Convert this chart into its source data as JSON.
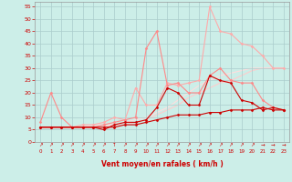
{
  "background_color": "#cceee8",
  "grid_color": "#aacccc",
  "xlabel": "Vent moyen/en rafales ( km/h )",
  "xlabel_color": "#cc0000",
  "tick_color": "#cc0000",
  "ylabel_ticks": [
    0,
    5,
    10,
    15,
    20,
    25,
    30,
    35,
    40,
    45,
    50,
    55
  ],
  "xlabel_ticks": [
    0,
    1,
    2,
    3,
    4,
    5,
    6,
    7,
    8,
    9,
    10,
    11,
    12,
    13,
    14,
    15,
    16,
    17,
    18,
    19,
    20,
    21,
    22,
    23
  ],
  "xlim": [
    -0.5,
    23.5
  ],
  "ylim": [
    0,
    57
  ],
  "lines": [
    {
      "x": [
        0,
        1,
        2,
        3,
        4,
        5,
        6,
        7,
        8,
        9,
        10,
        11,
        12,
        13,
        14,
        15,
        16,
        17,
        18,
        19,
        20,
        21,
        22,
        23
      ],
      "y": [
        6,
        6,
        6,
        6,
        6,
        6,
        6,
        6,
        7,
        7,
        8,
        9,
        10,
        11,
        11,
        11,
        12,
        12,
        13,
        13,
        13,
        14,
        13,
        13
      ],
      "color": "#cc0000",
      "lw": 0.8,
      "marker": "D",
      "ms": 1.5,
      "zorder": 5
    },
    {
      "x": [
        0,
        1,
        2,
        3,
        4,
        5,
        6,
        7,
        8,
        9,
        10,
        11,
        12,
        13,
        14,
        15,
        16,
        17,
        18,
        19,
        20,
        21,
        22,
        23
      ],
      "y": [
        6,
        6,
        6,
        6,
        6,
        6,
        5,
        7,
        8,
        8,
        9,
        14,
        22,
        20,
        15,
        15,
        27,
        25,
        24,
        17,
        16,
        13,
        14,
        13
      ],
      "color": "#cc0000",
      "lw": 0.8,
      "marker": "D",
      "ms": 1.5,
      "zorder": 4
    },
    {
      "x": [
        0,
        1,
        2,
        3,
        4,
        5,
        6,
        7,
        8,
        9,
        10,
        11,
        12,
        13,
        14,
        15,
        16,
        17,
        18,
        19,
        20,
        21,
        22,
        23
      ],
      "y": [
        8,
        20,
        10,
        6,
        6,
        6,
        7,
        8,
        9,
        10,
        38,
        45,
        23,
        24,
        20,
        20,
        27,
        30,
        25,
        24,
        24,
        17,
        14,
        13
      ],
      "color": "#ff8888",
      "lw": 0.8,
      "marker": "D",
      "ms": 1.5,
      "zorder": 3
    },
    {
      "x": [
        0,
        1,
        2,
        3,
        4,
        5,
        6,
        7,
        8,
        9,
        10,
        11,
        12,
        13,
        14,
        15,
        16,
        17,
        18,
        19,
        20,
        21,
        22,
        23
      ],
      "y": [
        6,
        6,
        6,
        6,
        7,
        7,
        8,
        10,
        9,
        22,
        15,
        15,
        24,
        23,
        24,
        25,
        55,
        45,
        44,
        40,
        39,
        35,
        30,
        30
      ],
      "color": "#ffaaaa",
      "lw": 0.8,
      "marker": "D",
      "ms": 1.5,
      "zorder": 2
    },
    {
      "x": [
        0,
        1,
        2,
        3,
        4,
        5,
        6,
        7,
        8,
        9,
        10,
        11,
        12,
        13,
        14,
        15,
        16,
        17,
        18,
        19,
        20,
        21,
        22,
        23
      ],
      "y": [
        6,
        6,
        6,
        6,
        6,
        6,
        6,
        7,
        7,
        8,
        9,
        11,
        13,
        15,
        18,
        20,
        22,
        24,
        25,
        27,
        29,
        30,
        30,
        30
      ],
      "color": "#ffcccc",
      "lw": 0.8,
      "marker": null,
      "ms": 0,
      "zorder": 1
    },
    {
      "x": [
        0,
        1,
        2,
        3,
        4,
        5,
        6,
        7,
        8,
        9,
        10,
        11,
        12,
        13,
        14,
        15,
        16,
        17,
        18,
        19,
        20,
        21,
        22,
        23
      ],
      "y": [
        6,
        6,
        6,
        6,
        6,
        7,
        7,
        7,
        8,
        9,
        10,
        12,
        14,
        17,
        20,
        23,
        25,
        27,
        28,
        29,
        30,
        30,
        30,
        30
      ],
      "color": "#ffdddd",
      "lw": 0.8,
      "marker": null,
      "ms": 0,
      "zorder": 1
    }
  ],
  "arrow_color": "#cc0000",
  "arrow_labels": [
    "↗",
    "↗",
    "↗",
    "↗",
    "↗",
    "↗",
    "↗",
    "↑",
    "↗",
    "↗",
    "↗",
    "↗",
    "↗",
    "↗",
    "↗",
    "↗",
    "↗",
    "↗",
    "↗",
    "↗",
    "↗",
    "→",
    "→",
    "→"
  ]
}
